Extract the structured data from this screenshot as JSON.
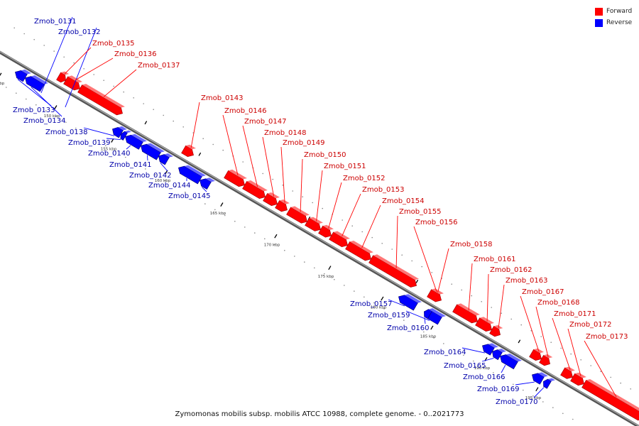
{
  "legend": {
    "forward_label": "Forward",
    "reverse_label": "Reverse",
    "forward_color": "#ff0000",
    "reverse_color": "#0000ff"
  },
  "caption": "Zymomonas mobilis subsp. mobilis ATCC 10988, complete genome. - 0..2021773",
  "ticks": [
    "145 kbp",
    "150 kbp",
    "155 kbp",
    "160 kbp",
    "165 kbp",
    "170 kbp",
    "175 kbp",
    "180 kbp",
    "185 kbp",
    "190 kbp",
    "195 kbp"
  ],
  "genes": [
    {
      "label": "Zmob_0131",
      "strand": "reverse"
    },
    {
      "label": "Zmob_0132",
      "strand": "reverse"
    },
    {
      "label": "Zmob_0133",
      "strand": "reverse"
    },
    {
      "label": "Zmob_0134",
      "strand": "reverse"
    },
    {
      "label": "Zmob_0135",
      "strand": "forward"
    },
    {
      "label": "Zmob_0136",
      "strand": "forward"
    },
    {
      "label": "Zmob_0137",
      "strand": "forward"
    },
    {
      "label": "Zmob_0138",
      "strand": "reverse"
    },
    {
      "label": "Zmob_0139",
      "strand": "reverse"
    },
    {
      "label": "Zmob_0140",
      "strand": "reverse"
    },
    {
      "label": "Zmob_0141",
      "strand": "reverse"
    },
    {
      "label": "Zmob_0142",
      "strand": "reverse"
    },
    {
      "label": "Zmob_0143",
      "strand": "forward"
    },
    {
      "label": "Zmob_0144",
      "strand": "reverse"
    },
    {
      "label": "Zmob_0145",
      "strand": "reverse"
    },
    {
      "label": "Zmob_0146",
      "strand": "forward"
    },
    {
      "label": "Zmob_0147",
      "strand": "forward"
    },
    {
      "label": "Zmob_0148",
      "strand": "forward"
    },
    {
      "label": "Zmob_0149",
      "strand": "forward"
    },
    {
      "label": "Zmob_0150",
      "strand": "forward"
    },
    {
      "label": "Zmob_0151",
      "strand": "forward"
    },
    {
      "label": "Zmob_0152",
      "strand": "forward"
    },
    {
      "label": "Zmob_0153",
      "strand": "forward"
    },
    {
      "label": "Zmob_0154",
      "strand": "forward"
    },
    {
      "label": "Zmob_0155",
      "strand": "forward"
    },
    {
      "label": "Zmob_0156",
      "strand": "forward"
    },
    {
      "label": "Zmob_0157",
      "strand": "reverse"
    },
    {
      "label": "Zmob_0158",
      "strand": "forward"
    },
    {
      "label": "Zmob_0159",
      "strand": "reverse"
    },
    {
      "label": "Zmob_0160",
      "strand": "reverse"
    },
    {
      "label": "Zmob_0161",
      "strand": "forward"
    },
    {
      "label": "Zmob_0162",
      "strand": "forward"
    },
    {
      "label": "Zmob_0163",
      "strand": "forward"
    },
    {
      "label": "Zmob_0164",
      "strand": "reverse"
    },
    {
      "label": "Zmob_0165",
      "strand": "reverse"
    },
    {
      "label": "Zmob_0166",
      "strand": "reverse"
    },
    {
      "label": "Zmob_0167",
      "strand": "forward"
    },
    {
      "label": "Zmob_0168",
      "strand": "forward"
    },
    {
      "label": "Zmob_0169",
      "strand": "reverse"
    },
    {
      "label": "Zmob_0170",
      "strand": "reverse"
    },
    {
      "label": "Zmob_0171",
      "strand": "forward"
    },
    {
      "label": "Zmob_0172",
      "strand": "forward"
    },
    {
      "label": "Zmob_0173",
      "strand": "forward"
    }
  ]
}
